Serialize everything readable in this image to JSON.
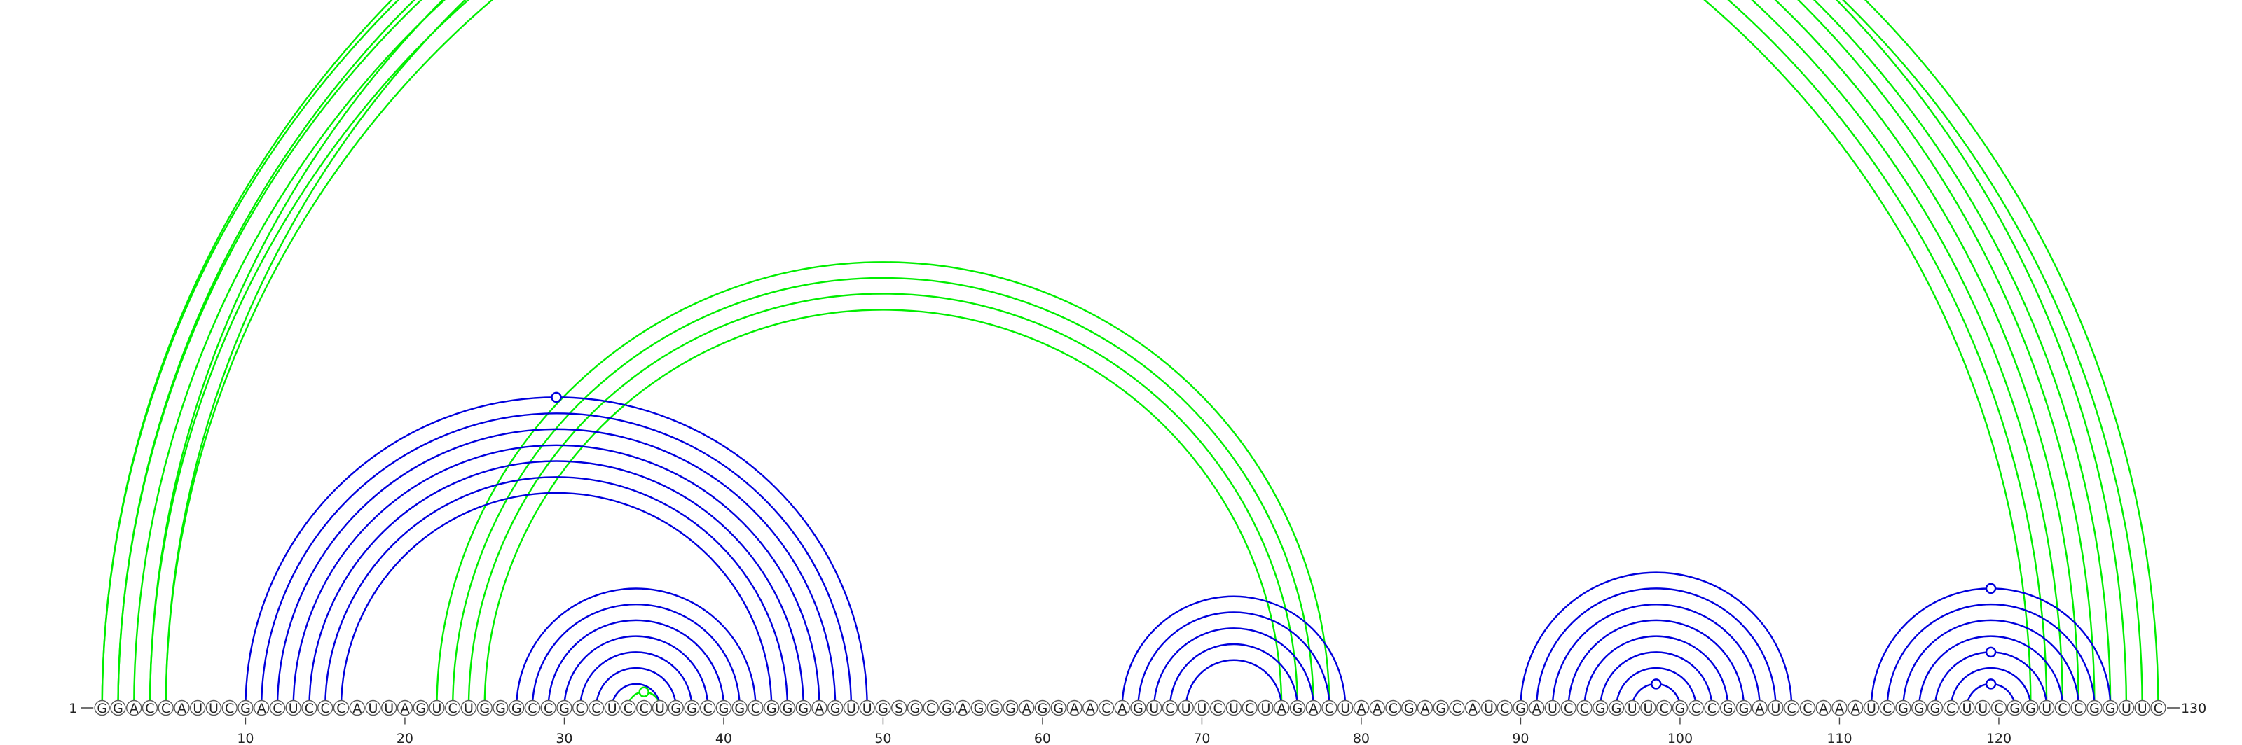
{
  "sequence": "GGACCAUUCGACUCCCAUUAGUCUGGGCCGCCUCCUGGCGGCGGGAGUUGSGCGAGGGAGGAACAGUCUUCUCUAGACUAACGAGCAUCGAUCCGGUUCGCCGGAUCCAAAUCGGGCUUCGGUCCGGUUC",
  "start_label": "1",
  "end_label": "130",
  "position_ticks": [
    "10",
    "20",
    "30",
    "40",
    "50",
    "60",
    "70",
    "80",
    "90",
    "100",
    "110",
    "120"
  ],
  "colors": {
    "structure_a": "#0000dd",
    "structure_b": "#00ee00"
  },
  "arc_groups": [
    {
      "color": "structure_b",
      "pairs": [
        [
          1,
          126
        ],
        [
          2,
          125
        ],
        [
          3,
          124
        ],
        [
          4,
          123
        ],
        [
          5,
          122
        ],
        [
          1,
          128
        ],
        [
          2,
          127
        ],
        [
          4,
          130
        ],
        [
          5,
          129
        ]
      ],
      "markers": [
        {
          "type": "open",
          "between": [
            3,
            128
          ]
        }
      ]
    },
    {
      "color": "structure_b",
      "pairs": [
        [
          22,
          78
        ],
        [
          23,
          77
        ],
        [
          24,
          76
        ],
        [
          25,
          75
        ]
      ],
      "markers": []
    },
    {
      "color": "structure_b",
      "pairs": [
        [
          34,
          36
        ]
      ],
      "markers": [
        {
          "type": "filled",
          "between": [
            34,
            36
          ]
        }
      ]
    },
    {
      "color": "structure_a",
      "pairs": [
        [
          10,
          49
        ],
        [
          11,
          48
        ],
        [
          12,
          47
        ],
        [
          13,
          46
        ],
        [
          14,
          45
        ],
        [
          15,
          44
        ],
        [
          16,
          43
        ]
      ],
      "markers": [
        {
          "type": "open",
          "between": [
            10,
            49
          ]
        }
      ]
    },
    {
      "color": "structure_a",
      "pairs": [
        [
          27,
          42
        ],
        [
          28,
          41
        ],
        [
          29,
          40
        ],
        [
          30,
          39
        ],
        [
          31,
          38
        ],
        [
          32,
          37
        ],
        [
          33,
          36
        ]
      ],
      "markers": []
    },
    {
      "color": "structure_a",
      "pairs": [
        [
          65,
          79
        ],
        [
          66,
          78
        ],
        [
          67,
          77
        ],
        [
          68,
          76
        ],
        [
          69,
          75
        ]
      ],
      "markers": []
    },
    {
      "color": "structure_a",
      "pairs": [
        [
          90,
          107
        ],
        [
          91,
          106
        ],
        [
          92,
          105
        ],
        [
          93,
          104
        ],
        [
          94,
          103
        ],
        [
          95,
          102
        ],
        [
          96,
          101
        ],
        [
          97,
          100
        ]
      ],
      "markers": [
        {
          "type": "open",
          "between": [
            97,
            100
          ]
        }
      ]
    },
    {
      "color": "structure_a",
      "pairs": [
        [
          112,
          127
        ],
        [
          113,
          126
        ],
        [
          114,
          125
        ],
        [
          115,
          124
        ],
        [
          116,
          123
        ],
        [
          117,
          122
        ],
        [
          118,
          121
        ]
      ],
      "markers": [
        {
          "type": "open",
          "between": [
            112,
            127
          ]
        },
        {
          "type": "open",
          "between": [
            116,
            123
          ]
        },
        {
          "type": "open",
          "between": [
            118,
            121
          ]
        }
      ]
    }
  ]
}
